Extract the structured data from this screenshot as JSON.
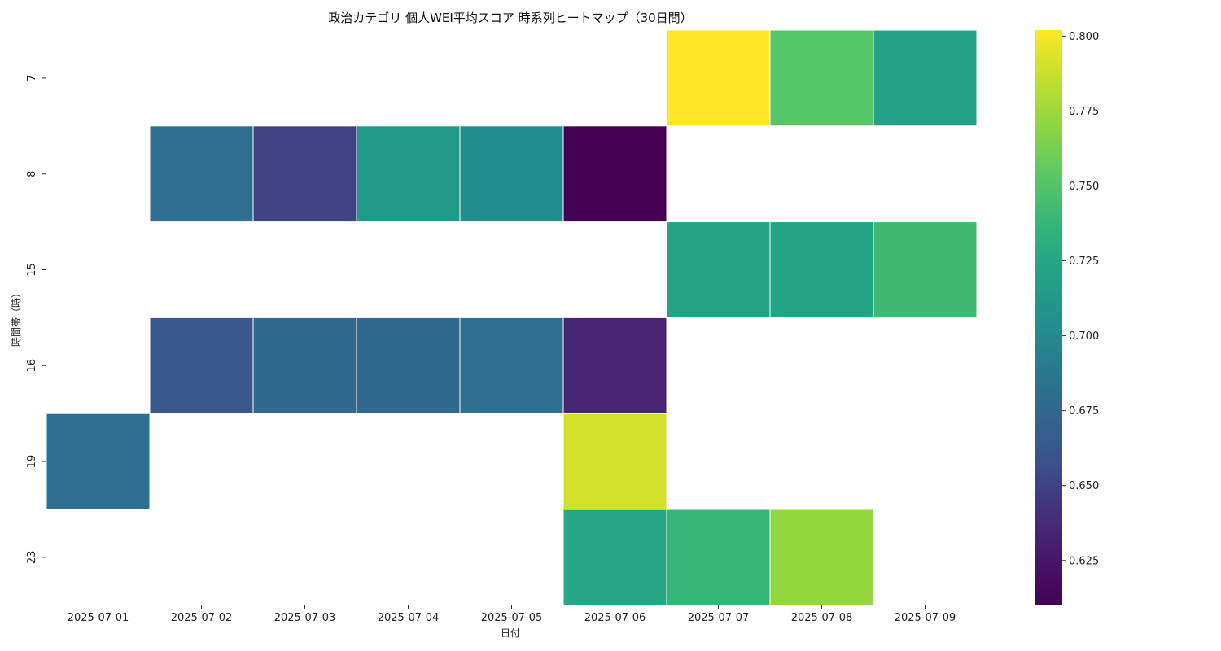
{
  "chart_data": {
    "type": "heatmap",
    "title": "政治カテゴリ 個人WEI平均スコア 時系列ヒートマップ（30日間）",
    "xlabel": "日付",
    "ylabel": "時間帯（時）",
    "x_categories": [
      "2025-07-01",
      "2025-07-02",
      "2025-07-03",
      "2025-07-04",
      "2025-07-05",
      "2025-07-06",
      "2025-07-07",
      "2025-07-08",
      "2025-07-09"
    ],
    "y_categories": [
      "7",
      "8",
      "15",
      "16",
      "19",
      "23"
    ],
    "values": [
      [
        null,
        null,
        null,
        null,
        null,
        null,
        0.802,
        0.752,
        0.72
      ],
      [
        null,
        0.68,
        0.65,
        0.712,
        0.703,
        0.61,
        null,
        null,
        null
      ],
      [
        null,
        null,
        null,
        null,
        null,
        null,
        0.722,
        0.722,
        0.742
      ],
      [
        null,
        0.662,
        0.675,
        0.675,
        0.68,
        0.635,
        null,
        null,
        null
      ],
      [
        0.68,
        null,
        null,
        null,
        null,
        0.79,
        null,
        null,
        null
      ],
      [
        null,
        null,
        null,
        null,
        null,
        0.725,
        0.738,
        0.772,
        null
      ]
    ],
    "colormap": "viridis",
    "colorbar": {
      "range": [
        0.61,
        0.802
      ],
      "ticks": [
        "0.625",
        "0.650",
        "0.675",
        "0.700",
        "0.725",
        "0.750",
        "0.775",
        "0.800"
      ]
    },
    "grid": false,
    "legend": "none"
  }
}
